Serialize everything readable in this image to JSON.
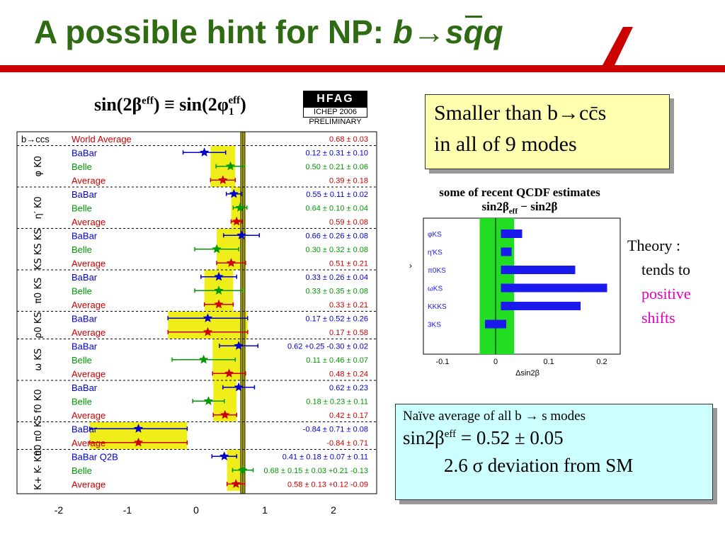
{
  "slide": {
    "title_prefix": "A possible hint for NP: ",
    "title_b": "b",
    "title_arrow": "→",
    "title_s": "s",
    "title_q": "q"
  },
  "formula": {
    "left": "sin(2β",
    "left_sup": "eff",
    "mid": ") ≡ sin(2φ",
    "right_sub": "1",
    "right_sup": "eff",
    "end": ")"
  },
  "hfag": {
    "logo": "HFAG",
    "conf": "ICHEP 2006",
    "status": "PRELIMINARY"
  },
  "colors": {
    "babar": "#0000cc",
    "belle": "#009900",
    "average": "#cc0000",
    "world": "#cc0000",
    "band": "#f0ee1a",
    "title": "#2e6b12"
  },
  "chart_data": {
    "type": "scatter",
    "xlim": [
      -2.2,
      2.7
    ],
    "x_ticks": [
      "-2",
      "-1",
      "0",
      "1",
      "2"
    ],
    "world_average": {
      "label": "World Average",
      "text": "0.68 ± 0.03",
      "value": 0.68,
      "err": 0.03,
      "header": "b→ccs"
    },
    "modes": [
      {
        "label": "φ K0",
        "rows": [
          {
            "exp": "BaBar",
            "v": 0.12,
            "e": 0.31,
            "text": "0.12 ± 0.31 ± 0.10"
          },
          {
            "exp": "Belle",
            "v": 0.5,
            "e": 0.21,
            "text": "0.50 ± 0.21 ± 0.06"
          },
          {
            "exp": "Average",
            "v": 0.39,
            "e": 0.18,
            "text": "0.39 ± 0.18"
          }
        ]
      },
      {
        "label": "η′ K0",
        "rows": [
          {
            "exp": "BaBar",
            "v": 0.55,
            "e": 0.11,
            "text": "0.55 ± 0.11 ± 0.02"
          },
          {
            "exp": "Belle",
            "v": 0.64,
            "e": 0.1,
            "text": "0.64 ± 0.10 ± 0.04"
          },
          {
            "exp": "Average",
            "v": 0.59,
            "e": 0.08,
            "text": "0.59 ± 0.08"
          }
        ]
      },
      {
        "label": "KS KS KS",
        "rows": [
          {
            "exp": "BaBar",
            "v": 0.66,
            "e": 0.26,
            "text": "0.66 ± 0.26 ± 0.08"
          },
          {
            "exp": "Belle",
            "v": 0.3,
            "e": 0.32,
            "text": "0.30 ± 0.32 ± 0.08"
          },
          {
            "exp": "Average",
            "v": 0.51,
            "e": 0.21,
            "text": "0.51 ± 0.21"
          }
        ]
      },
      {
        "label": "π0 KS",
        "rows": [
          {
            "exp": "BaBar",
            "v": 0.33,
            "e": 0.26,
            "text": "0.33 ± 0.26 ± 0.04"
          },
          {
            "exp": "Belle",
            "v": 0.33,
            "e": 0.35,
            "text": "0.33 ± 0.35 ± 0.08"
          },
          {
            "exp": "Average",
            "v": 0.33,
            "e": 0.21,
            "text": "0.33 ± 0.21"
          }
        ]
      },
      {
        "label": "ρ0 KS",
        "rows": [
          {
            "exp": "BaBar",
            "v": 0.17,
            "e": 0.58,
            "text": "0.17 ± 0.52 ± 0.26"
          },
          {
            "exp": "Average",
            "v": 0.17,
            "e": 0.58,
            "text": "0.17 ± 0.58"
          }
        ]
      },
      {
        "label": "ω KS",
        "rows": [
          {
            "exp": "BaBar",
            "v": 0.62,
            "e": 0.28,
            "text": "0.62 +0.25 -0.30 ± 0.02"
          },
          {
            "exp": "Belle",
            "v": 0.11,
            "e": 0.46,
            "text": "0.11 ± 0.46 ± 0.07"
          },
          {
            "exp": "Average",
            "v": 0.48,
            "e": 0.24,
            "text": "0.48 ± 0.24"
          }
        ]
      },
      {
        "label": "f0 K0",
        "rows": [
          {
            "exp": "BaBar",
            "v": 0.62,
            "e": 0.23,
            "text": "0.62 ± 0.23"
          },
          {
            "exp": "Belle",
            "v": 0.18,
            "e": 0.23,
            "text": "0.18 ± 0.23 ± 0.11"
          },
          {
            "exp": "Average",
            "v": 0.42,
            "e": 0.17,
            "text": "0.42 ± 0.17"
          }
        ]
      },
      {
        "label": "π0 π0 KS",
        "rows": [
          {
            "exp": "BaBar",
            "v": -0.84,
            "e": 0.71,
            "text": "-0.84 ± 0.71 ± 0.08"
          },
          {
            "exp": "Average",
            "v": -0.84,
            "e": 0.71,
            "text": "-0.84 ± 0.71"
          }
        ]
      },
      {
        "label": "K+ K- K0",
        "rows": [
          {
            "exp": "BaBar Q2B",
            "v": 0.41,
            "e": 0.18,
            "text": "0.41 ± 0.18 ± 0.07 ± 0.11"
          },
          {
            "exp": "Belle",
            "v": 0.68,
            "e": 0.15,
            "text": "0.68 ± 0.15 ± 0.03 +0.21 -0.13"
          },
          {
            "exp": "Average",
            "v": 0.58,
            "e": 0.13,
            "text": "0.58 ± 0.13 +0.12 -0.09"
          }
        ]
      }
    ]
  },
  "box1": {
    "line1": "Smaller than b→cc̄s",
    "line2": "in all of 9 modes"
  },
  "qcdf": {
    "title1": "some of recent QCDF estimates",
    "title2": "sin2β",
    "title2_sub": "eff",
    "title2_end": " − sin2β",
    "xlabel": "Δsin2β",
    "x_ticks": [
      "-0.1",
      "0",
      "0.1",
      "0.2"
    ],
    "chart_data": {
      "type": "bar",
      "categories": [
        "φKS",
        "η′KS",
        "π0KS",
        "ωKS",
        "KKKS",
        "3KS"
      ],
      "values": [
        0.05,
        0.03,
        0.15,
        0.21,
        0.16,
        -0.02
      ],
      "band": [
        -0.03,
        0.035
      ]
    }
  },
  "theory": {
    "l1": "Theory :",
    "l2": "tends to",
    "l3": "positive",
    "l4": "shifts"
  },
  "box2": {
    "line1": "Naïve average of all b → s modes",
    "line2a": "sin2β",
    "line2sup": "eff",
    "line2b": " = 0.52 ± 0.05",
    "line3": "2.6 σ deviation from SM"
  }
}
